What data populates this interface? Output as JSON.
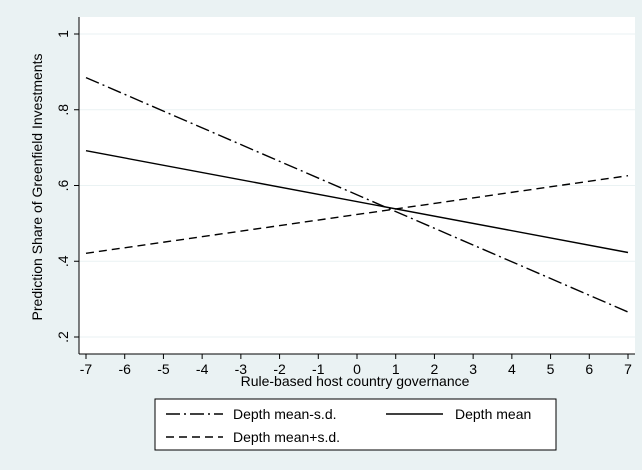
{
  "chart_data": {
    "type": "line",
    "xlabel": "Rule-based host country governance",
    "ylabel": "Prediction Share of Greenfield Investments",
    "xlim": [
      -7,
      7
    ],
    "ylim": [
      0.2,
      1.0
    ],
    "x_ticks": [
      "-7",
      "-6",
      "-5",
      "-4",
      "-3",
      "-2",
      "-1",
      "0",
      "1",
      "2",
      "3",
      "4",
      "5",
      "6",
      "7"
    ],
    "y_ticks": [
      ".2",
      ".4",
      ".6",
      ".8",
      "1"
    ],
    "grid": "horizontal",
    "legend_position": "bottom",
    "series": [
      {
        "name": "Depth mean-s.d.",
        "line_style": "dash-dot",
        "color": "#000000",
        "x": [
          -7,
          7
        ],
        "y": [
          0.885,
          0.266
        ]
      },
      {
        "name": "Depth mean",
        "line_style": "solid",
        "color": "#000000",
        "x": [
          -7,
          7
        ],
        "y": [
          0.692,
          0.423
        ]
      },
      {
        "name": "Depth mean+s.d.",
        "line_style": "dashed",
        "color": "#000000",
        "x": [
          -7,
          7
        ],
        "y": [
          0.421,
          0.626
        ]
      }
    ]
  },
  "colors": {
    "outer_background": "#eaf2f3",
    "plot_background": "#ffffff",
    "grid": "#eaf2f3",
    "axis": "#000000"
  }
}
